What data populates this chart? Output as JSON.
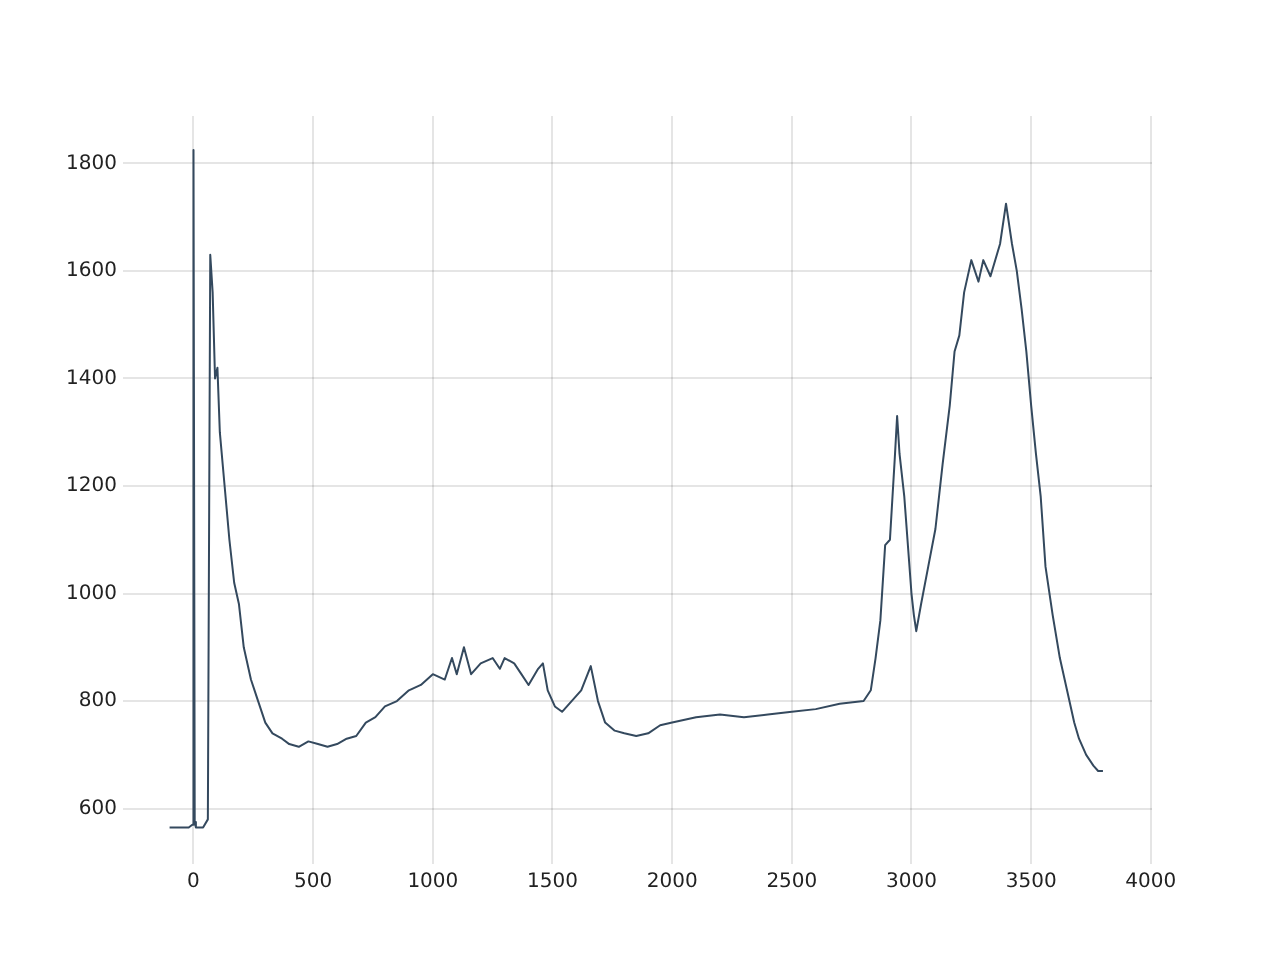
{
  "chart_data": {
    "type": "line",
    "x": [
      -100,
      -20,
      -5,
      0,
      5,
      10,
      40,
      60,
      70,
      80,
      90,
      100,
      110,
      130,
      150,
      170,
      190,
      210,
      240,
      270,
      300,
      330,
      370,
      400,
      440,
      480,
      520,
      560,
      600,
      640,
      680,
      720,
      760,
      800,
      850,
      900,
      950,
      1000,
      1050,
      1080,
      1100,
      1130,
      1160,
      1200,
      1250,
      1280,
      1300,
      1340,
      1370,
      1400,
      1440,
      1460,
      1480,
      1510,
      1540,
      1580,
      1620,
      1660,
      1690,
      1720,
      1760,
      1800,
      1850,
      1900,
      1950,
      2000,
      2100,
      2200,
      2300,
      2400,
      2500,
      2600,
      2700,
      2800,
      2830,
      2850,
      2870,
      2890,
      2910,
      2930,
      2940,
      2950,
      2970,
      3000,
      3010,
      3020,
      3040,
      3070,
      3100,
      3130,
      3160,
      3180,
      3200,
      3220,
      3250,
      3280,
      3300,
      3330,
      3370,
      3395,
      3420,
      3440,
      3460,
      3480,
      3500,
      3520,
      3540,
      3560,
      3590,
      3620,
      3650,
      3680,
      3700,
      3730,
      3760,
      3780,
      3800
    ],
    "series": [
      {
        "color": "#34495e",
        "values": [
          565,
          565,
          570,
          1825,
          575,
          565,
          565,
          580,
          1630,
          1560,
          1400,
          1420,
          1300,
          1200,
          1100,
          1020,
          980,
          900,
          840,
          800,
          760,
          740,
          730,
          720,
          715,
          725,
          720,
          715,
          720,
          730,
          735,
          760,
          770,
          790,
          800,
          820,
          830,
          850,
          840,
          880,
          850,
          900,
          850,
          870,
          880,
          860,
          880,
          870,
          850,
          830,
          860,
          870,
          820,
          790,
          780,
          800,
          820,
          865,
          800,
          760,
          745,
          740,
          735,
          740,
          755,
          760,
          770,
          775,
          770,
          775,
          780,
          785,
          795,
          800,
          820,
          880,
          950,
          1090,
          1100,
          1250,
          1330,
          1260,
          1180,
          1000,
          960,
          930,
          980,
          1050,
          1120,
          1240,
          1350,
          1450,
          1480,
          1560,
          1620,
          1580,
          1620,
          1590,
          1650,
          1725,
          1650,
          1600,
          1530,
          1450,
          1350,
          1260,
          1180,
          1050,
          960,
          880,
          820,
          760,
          730,
          700,
          680,
          670,
          670
        ]
      }
    ],
    "xlim": [
      -295,
      4005
    ],
    "xticks": [
      0,
      500,
      1000,
      1500,
      2000,
      2500,
      3000,
      3500,
      4000
    ],
    "ylim": [
      497,
      1888
    ],
    "yticks": [
      600,
      800,
      1000,
      1200,
      1400,
      1600,
      1800
    ],
    "grid": true,
    "legend": false,
    "marker": "none",
    "line_style": "solid"
  }
}
